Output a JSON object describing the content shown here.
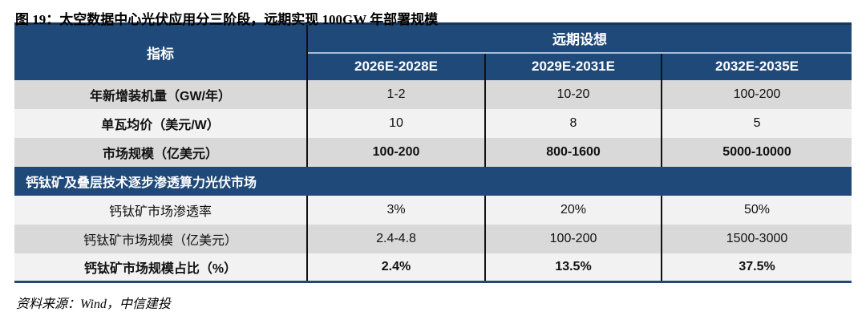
{
  "title": "图 19：太空数据中心光伏应用分三阶段，远期实现 100GW 年部署规模",
  "table": {
    "corner_header": "指标",
    "group_header": "远期设想",
    "column_headers": [
      "2026E-2028E",
      "2029E-2031E",
      "2032E-2035E"
    ],
    "section_header": "钙钛矿及叠层技术逐步渗透算力光伏市场",
    "rows": [
      {
        "label": "年新增装机量（GW/年）",
        "values": [
          "1-2",
          "10-20",
          "100-200"
        ]
      },
      {
        "label": "单瓦均价（美元/W）",
        "values": [
          "10",
          "8",
          "5"
        ]
      },
      {
        "label": "市场规模（亿美元）",
        "values": [
          "100-200",
          "800-1600",
          "5000-10000"
        ]
      },
      {
        "label": "钙钛矿市场渗透率",
        "values": [
          "3%",
          "20%",
          "50%"
        ]
      },
      {
        "label": "钙钛矿市场规模（亿美元）",
        "values": [
          "2.4-4.8",
          "100-200",
          "1500-3000"
        ]
      },
      {
        "label": "钙钛矿市场规模占比（%）",
        "values": [
          "2.4%",
          "13.5%",
          "37.5%"
        ]
      }
    ]
  },
  "footer": "资料来源：Wind，中信建投",
  "colors": {
    "header_navy": "#1f4979",
    "top_rule": "#16365c",
    "row_gray": "#d9d9d9",
    "row_light": "#f2f2f2",
    "divider_black": "#111111",
    "header_split_line": "#a9bfd9"
  },
  "chart_data": {
    "type": "table",
    "title": "图 19：太空数据中心光伏应用分三阶段，远期实现 100GW 年部署规模",
    "group_header": "远期设想",
    "columns": [
      "指标",
      "2026E-2028E",
      "2029E-2031E",
      "2032E-2035E"
    ],
    "rows": [
      [
        "年新增装机量（GW/年）",
        "1-2",
        "10-20",
        "100-200"
      ],
      [
        "单瓦均价（美元/W）",
        "10",
        "8",
        "5"
      ],
      [
        "市场规模（亿美元）",
        "100-200",
        "800-1600",
        "5000-10000"
      ],
      [
        "钙钛矿及叠层技术逐步渗透算力光伏市场",
        "",
        "",
        ""
      ],
      [
        "钙钛矿市场渗透率",
        "3%",
        "20%",
        "50%"
      ],
      [
        "钙钛矿市场规模（亿美元）",
        "2.4-4.8",
        "100-200",
        "1500-3000"
      ],
      [
        "钙钛矿市场规模占比（%）",
        "2.4%",
        "13.5%",
        "37.5%"
      ]
    ],
    "source": "资料来源：Wind，中信建投"
  }
}
